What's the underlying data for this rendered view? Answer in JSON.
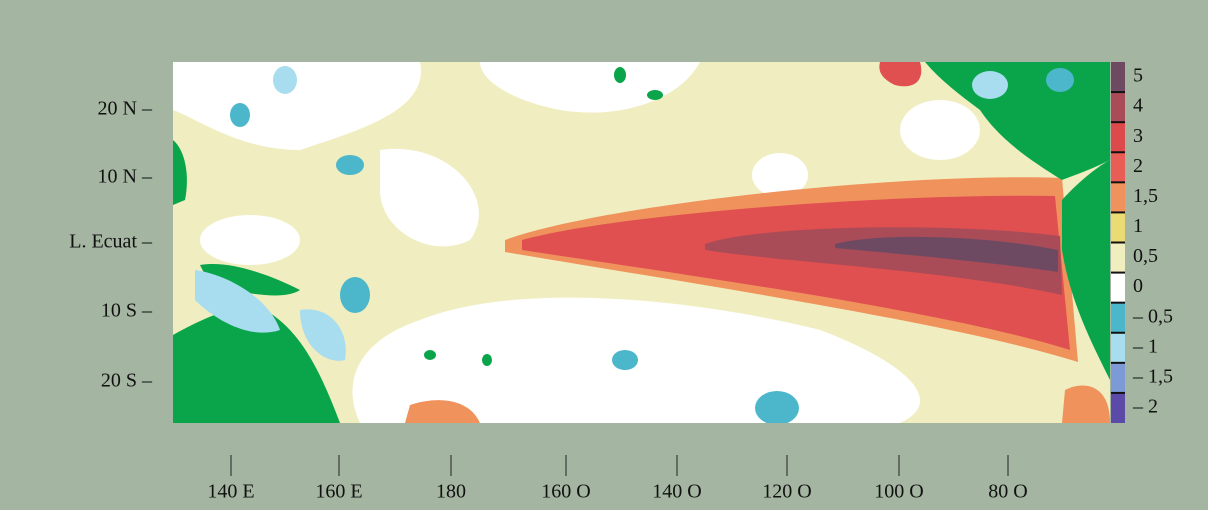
{
  "map": {
    "y_labels": [
      "20 N –",
      "10 N –",
      "L. Ecuat –",
      "10 S –",
      "20 S –"
    ],
    "x_labels": [
      "140 E",
      "160 E",
      "180",
      "160 O",
      "140 O",
      "120 O",
      "100 O",
      "80 O"
    ],
    "legend": {
      "labels": [
        "5",
        "4",
        "3",
        "2",
        "1,5",
        "1",
        "0,5",
        "0",
        "– 0,5",
        "– 1",
        "– 1,5",
        "– 2"
      ],
      "colors": [
        "#6e4a62",
        "#a94c58",
        "#dd4a4c",
        "#e85d55",
        "#f0925c",
        "#e9dc72",
        "#f0eebe",
        "#ffffff",
        "#4cb6cb",
        "#a8dcef",
        "#7c9ad6",
        "#5c4aa8"
      ]
    }
  }
}
